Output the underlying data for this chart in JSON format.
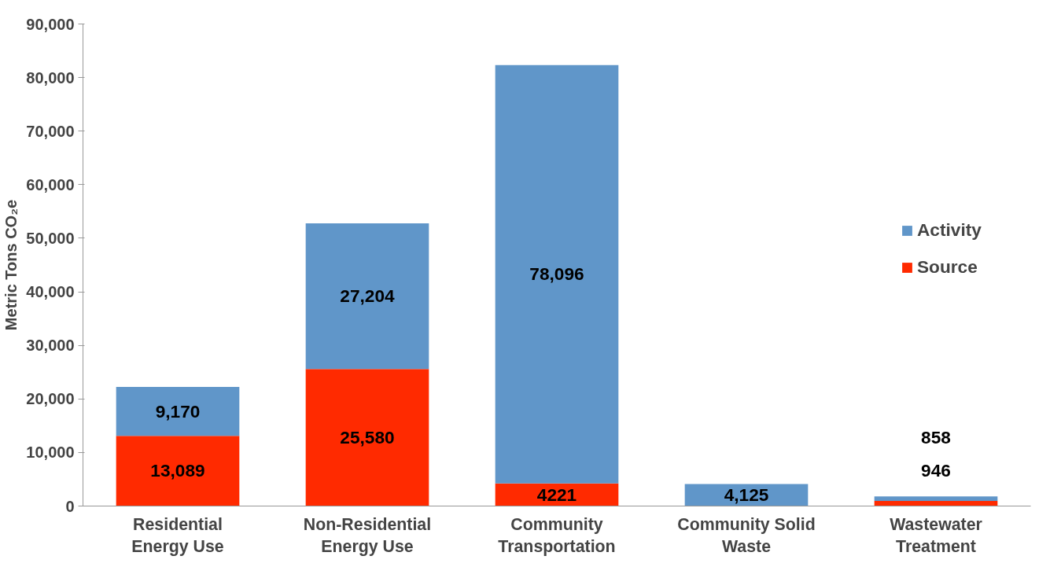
{
  "chart_data": {
    "type": "bar",
    "stacked": true,
    "ylabel": "Metric Tons CO₂e",
    "categories": [
      "Residential Energy Use",
      "Non-Residential Energy Use",
      "Community Transportation",
      "Community Solid Waste",
      "Wastewater Treatment"
    ],
    "series": [
      {
        "name": "Source",
        "color": "#ff2a00",
        "values": [
          13089,
          25580,
          4221,
          0,
          946
        ],
        "value_labels": [
          "13,089",
          "25,580",
          "4221",
          null,
          "946"
        ]
      },
      {
        "name": "Activity",
        "color": "#6096c9",
        "values": [
          9170,
          27204,
          78096,
          4125,
          858
        ],
        "value_labels": [
          "9,170",
          "27,204",
          "78,096",
          "4,125",
          "858"
        ]
      }
    ],
    "ylim": [
      0,
      90000
    ],
    "yticks": [
      {
        "value": 0,
        "label": "0"
      },
      {
        "value": 10000,
        "label": "10,000"
      },
      {
        "value": 20000,
        "label": "20,000"
      },
      {
        "value": 30000,
        "label": "30,000"
      },
      {
        "value": 40000,
        "label": "40,000"
      },
      {
        "value": 50000,
        "label": "50,000"
      },
      {
        "value": 60000,
        "label": "60,000"
      },
      {
        "value": 70000,
        "label": "70,000"
      },
      {
        "value": 80000,
        "label": "80,000"
      },
      {
        "value": 90000,
        "label": "90,000"
      }
    ],
    "legend": "right",
    "grid": false
  }
}
